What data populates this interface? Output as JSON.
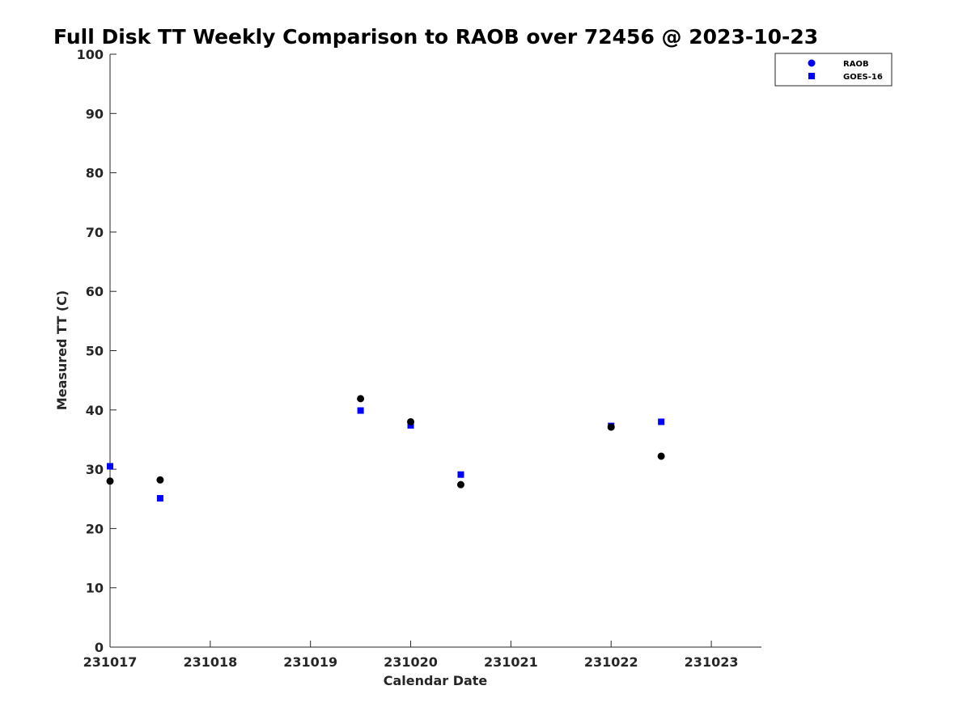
{
  "chart_data": {
    "type": "scatter",
    "title": "Full Disk TT Weekly Comparison to RAOB over 72456 @ 2023-10-23",
    "xlabel": "Calendar Date",
    "ylabel": "Measured TT (C)",
    "xlim": [
      0,
      6.5
    ],
    "ylim": [
      0,
      100
    ],
    "x_ticks": [
      0,
      1,
      2,
      3,
      4,
      5,
      6
    ],
    "x_tick_labels": [
      "231017",
      "231018",
      "231019",
      "231020",
      "231021",
      "231022",
      "231023"
    ],
    "y_ticks": [
      0,
      10,
      20,
      30,
      40,
      50,
      60,
      70,
      80,
      90,
      100
    ],
    "y_tick_labels": [
      "0",
      "10",
      "20",
      "30",
      "40",
      "50",
      "60",
      "70",
      "80",
      "90",
      "100"
    ],
    "legend_position": "top-right",
    "series": [
      {
        "name": "RAOB",
        "marker": "circle",
        "color": "#000000",
        "legend_color": "#0000ff",
        "x": [
          0,
          0.5,
          2.5,
          3.0,
          3.5,
          5.0,
          5.5
        ],
        "y": [
          28.0,
          28.2,
          41.9,
          38.0,
          27.4,
          37.1,
          32.2
        ]
      },
      {
        "name": "GOES-16",
        "marker": "square",
        "color": "#0000ff",
        "legend_color": "#0000ff",
        "x": [
          0,
          0.5,
          2.5,
          3.0,
          3.5,
          5.0,
          5.5
        ],
        "y": [
          30.5,
          25.1,
          39.9,
          37.4,
          29.1,
          37.3,
          38.0
        ]
      }
    ]
  }
}
